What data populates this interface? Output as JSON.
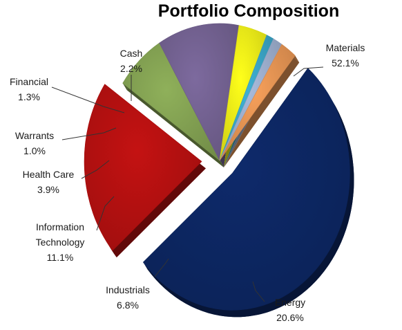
{
  "chart_data": {
    "type": "pie",
    "title": "Portfolio Composition",
    "exploded": [
      "Materials",
      "Energy"
    ],
    "style": "3d",
    "slices": [
      {
        "name": "Materials",
        "label": "Materials",
        "value": 52.1,
        "pct": "52.1%",
        "color": "#0E2A6B"
      },
      {
        "name": "Energy",
        "label": "Energy",
        "value": 20.6,
        "pct": "20.6%",
        "color": "#C41212"
      },
      {
        "name": "Industrials",
        "label": "Industrials",
        "value": 6.8,
        "pct": "6.8%",
        "color": "#8FB05A"
      },
      {
        "name": "Information Technology",
        "label": "Information|Technology",
        "value": 11.1,
        "pct": "11.1%",
        "color": "#7D6A9E"
      },
      {
        "name": "Health Care",
        "label": "Health Care",
        "value": 3.9,
        "pct": "3.9%",
        "color": "#FFFF1A"
      },
      {
        "name": "Warrants",
        "label": "Warrants",
        "value": 1.0,
        "pct": "1.0%",
        "color": "#3FB2D6"
      },
      {
        "name": "Financial",
        "label": "Financial",
        "value": 1.3,
        "pct": "1.3%",
        "color": "#A9BCDD"
      },
      {
        "name": "Cash",
        "label": "Cash",
        "value": 2.2,
        "pct": "2.2%",
        "color": "#F7A05A"
      }
    ]
  }
}
